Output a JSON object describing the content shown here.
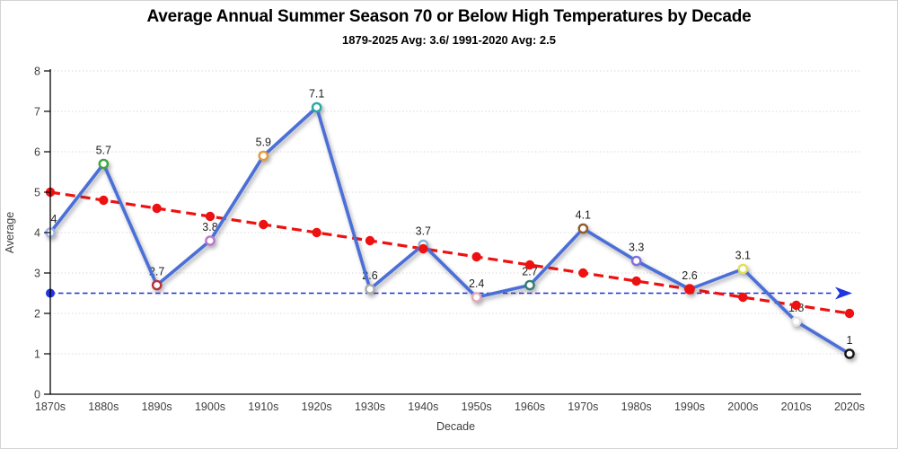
{
  "chart_data": {
    "type": "line",
    "title": "Average Annual Summer Season 70 or Below High Temperatures by Decade",
    "subtitle": "1879-2025 Avg: 3.6/ 1991-2020 Avg: 2.5",
    "xlabel": "Decade",
    "ylabel": "Average",
    "ylim": [
      0,
      8
    ],
    "yticks": [
      0,
      1,
      2,
      3,
      4,
      5,
      6,
      7,
      8
    ],
    "grid": true,
    "legend": "none",
    "categories": [
      "1870s",
      "1880s",
      "1890s",
      "1900s",
      "1910s",
      "1920s",
      "1930s",
      "1940s",
      "1950s",
      "1960s",
      "1970s",
      "1980s",
      "1990s",
      "2000s",
      "2010s",
      "2020s"
    ],
    "series": [
      {
        "id": "decade-average",
        "type": "line-with-markers",
        "color": "#4a6fd8",
        "values": [
          4,
          5.7,
          2.7,
          3.8,
          5.9,
          7.1,
          2.6,
          3.7,
          2.4,
          2.7,
          4.1,
          3.3,
          2.6,
          3.1,
          1.8,
          1
        ],
        "labels": [
          "4",
          "5.7",
          "2.7",
          "3.8",
          "5.9",
          "7.1",
          "2.6",
          "3.7",
          "2.4",
          "2.7",
          "4.1",
          "3.3",
          "2.6",
          "3.1",
          "1.8",
          "1"
        ],
        "marker_fill": "#ffffff",
        "marker_colors": [
          "#9cb6e9",
          "#3ea43c",
          "#b5323c",
          "#bb76d2",
          "#e59a3a",
          "#2ba8a3",
          "#ababab",
          "#85b7d9",
          "#e4a9b5",
          "#30806f",
          "#8f5c2a",
          "#8070dc",
          "#ee1111",
          "#e0e055",
          "#e2e2e2",
          "#151515"
        ]
      },
      {
        "id": "linear-trend",
        "type": "dashed-line-with-dots",
        "color": "#ee1111",
        "values": [
          5.0,
          4.8,
          4.6,
          4.4,
          4.2,
          4.0,
          3.8,
          3.6,
          3.4,
          3.2,
          3.0,
          2.8,
          2.6,
          2.4,
          2.2,
          2.0
        ]
      }
    ],
    "reference_line": {
      "id": "avg-1991-2020",
      "value": 2.5,
      "line_color": "#1c2dd6",
      "marker_color": "#1e35e0",
      "has_start_dot": true,
      "has_end_arrow": true
    },
    "colors": {
      "grid": "#d9d9d9",
      "axis": "#000000",
      "tick": "#3f3f3f",
      "label": "#1f1f1f"
    }
  }
}
